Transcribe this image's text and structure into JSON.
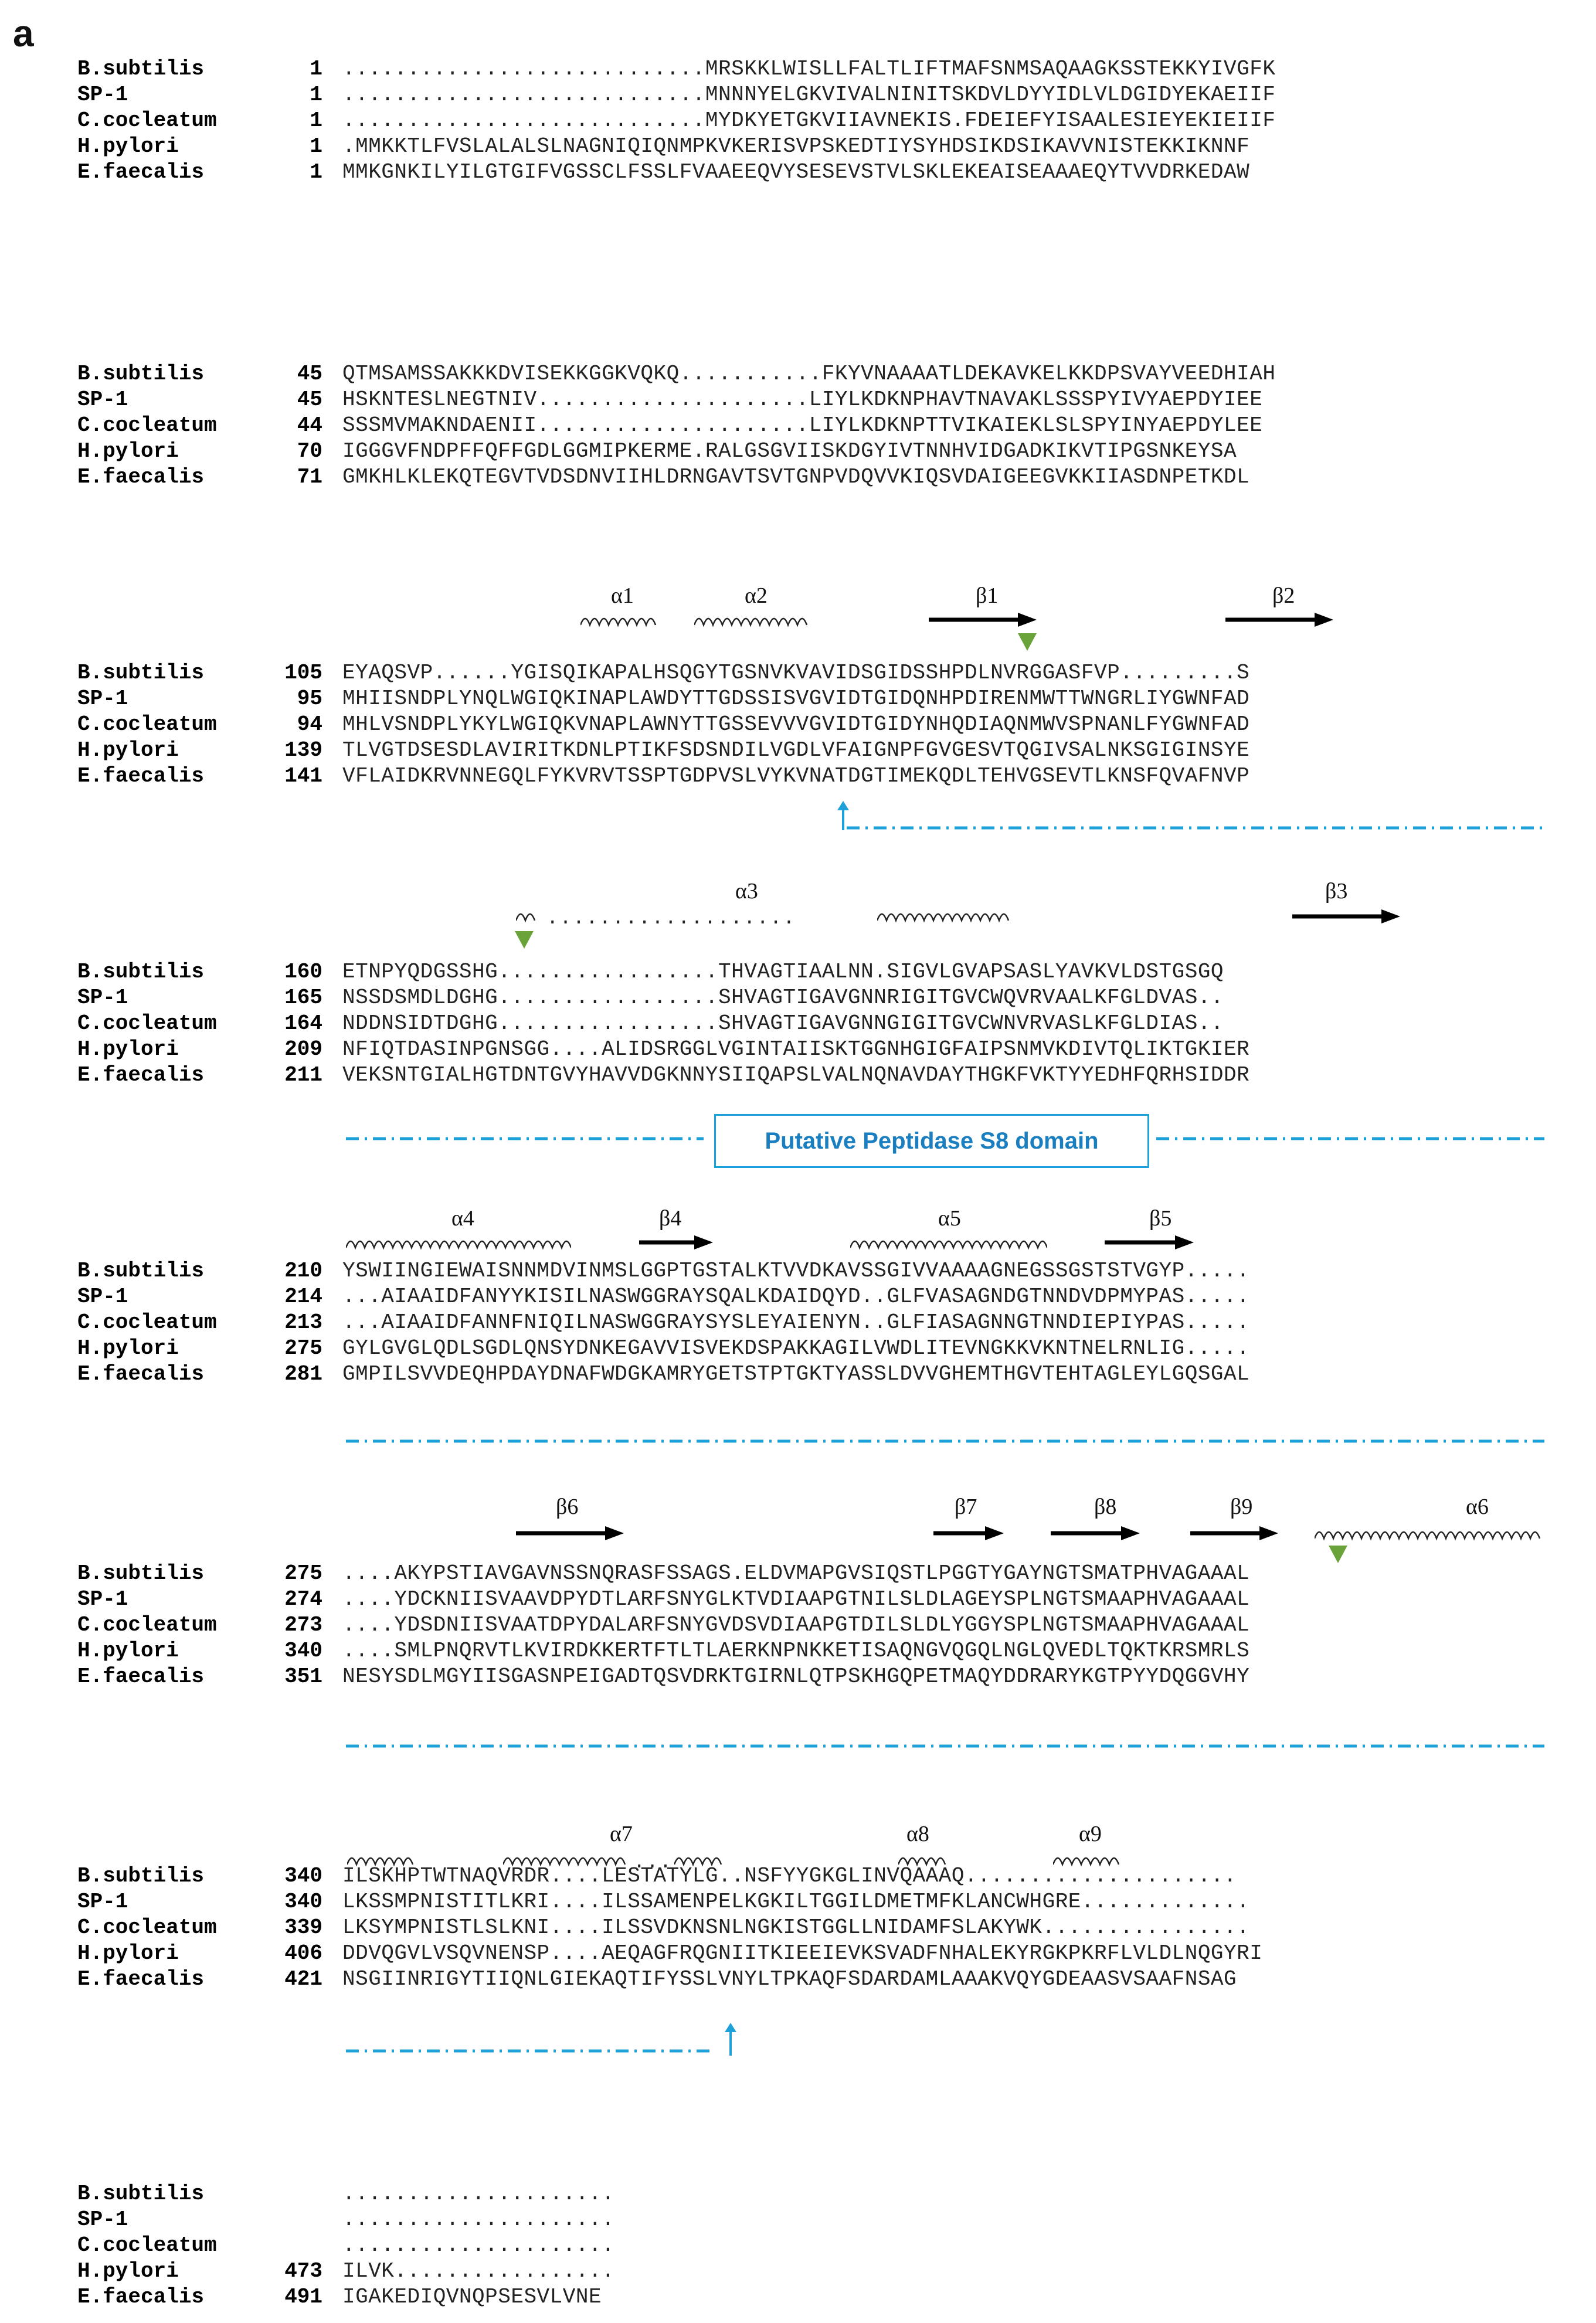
{
  "panel_label": "a",
  "species": [
    "B.subtilis",
    "SP-1",
    "C.cocleatum",
    "H.pylori",
    "E.faecalis"
  ],
  "blocks": [
    {
      "nums": [
        "1",
        "1",
        "1",
        "1",
        "1"
      ],
      "seqs": [
        "............................MRSKKLWISLLFALTLIFTMAFSNMSAQAAGKSSTEKKYIVGFK",
        "............................MNNNYELGKVIVALNINITSKDVLDYYIDLVLDGIDYEKAEIIF",
        "............................MYDKYETGKVIIAVNEKIS.FDEIEFYISAALESIEYEKIEIIF",
        ".MMKKTLFVSLALALSLNAGNIQIQNMPKVKERISVPSKEDTIYSYHDSIKDSIKAVVNISTEKKIKNNF",
        "MMKGNKILYILGTGIFVGSSCLFSSLFVAAEEQVYSESEVSTVLSKLEKEAISEAAAEQYTVVDRKEDAW"
      ]
    },
    {
      "nums": [
        "45",
        "45",
        "44",
        "70",
        "71"
      ],
      "seqs": [
        "QTMSAMSSAKKKDVISEKKGGKVQKQ...........FKYVNAAAATLDEKAVKELKKDPSVAYVEEDHIAH",
        "HSKNTESLNEGTNIV.....................LIYLKDKNPHAVTNAVAKLSSSPYIVYAEPDYIEE",
        "SSSMVMAKNDAENII.....................LIYLKDKNPTTVIKAIEKLSLSPYINYAEPDYLEE",
        "IGGGVFNDPFFQFFGDLGGMIPKERME.RALGSGVIISKDGYIVTNNHVIDGADKIKVTIPGSNKEYSA",
        "GMKHLKLEKQTEGVTVDSDNVIIHLDRNGAVTSVTGNPVDQVVKIQSVDAIGEEGVKKIIASDNPETKDL"
      ]
    },
    {
      "nums": [
        "105",
        "95",
        "94",
        "139",
        "141"
      ],
      "seqs": [
        "EYAQSVP......YGISQIKAPALHSQGYTGSNVKVAVIDSGIDSSHPDLNVRGGASFVP.........S",
        "MHIISNDPLYNQLWGIQKINAPLAWDYTTGDSSISVGVIDTGIDQNHPDIRENMWTTWNGRLIYGWNFAD",
        "MHLVSNDPLYKYLWGIQKVNAPLAWNYTTGSSEVVVGVIDTGIDYNHQDIAQNMWVSPNANLFYGWNFAD",
        "TLVGTDSESDLAVIRITKDNLPTIKFSDSNDILVGDLVFAIGNPFGVGESVTQGIVSALNKSGIGINSYE",
        "VFLAIDKRVNNEGQLFYKVRVTSSPTGDPVSLVYKVNATDGTIMEKQDLTEHVGSEVTLKNSFQVAFNVP"
      ]
    },
    {
      "nums": [
        "160",
        "165",
        "164",
        "209",
        "211"
      ],
      "seqs": [
        "ETNPYQDGSSHG.................THVAGTIAALNN.SIGVLGVAPSASLYAVKVLDSTGSGQ",
        "NSSDSMDLDGHG.................SHVAGTIGAVGNNRIGITGVCWQVRVAALKFGLDVAS..",
        "NDDNSIDTDGHG.................SHVAGTIGAVGNNGIGITGVCWNVRVASLKFGLDIAS..",
        "NFIQTDASINPGNSGG....ALIDSRGGLVGINTAIISKTGGNHGIGFAIPSNMVKDIVTQLIKTGKIER",
        "VEKSNTGIALHGTDNTGVYHAVVDGKNNYSIIQAPSLVALNQNAVDAYTHGKFVKTYYEDHFQRHSIDDR"
      ]
    },
    {
      "nums": [
        "210",
        "214",
        "213",
        "275",
        "281"
      ],
      "seqs": [
        "YSWIINGIEWAISNNMDVINMSLGGPTGSTALKTVVDKAVSSGIVVAAAAGNEGSSGSTSTVGYP.....",
        "...AIAAIDFANYYKISILNASWGGRAYSQALKDAIDQYD..GLFVASAGNDGTNNDVDPMYPAS.....",
        "...AIAAIDFANNFNIQILNASWGGRAYSYSLEYAIENYN..GLFIASAGNNGTNNDIEPIYPAS.....",
        "GYLGVGLQDLSGDLQNSYDNKEGAVVISVEKDSPAKKAGILVWDLITEVNGKKVKNTNELRNLIG.....",
        "GMPILSVVDEQHPDAYDNAFWDGKAMRYGETSTPTGKTYASSLDVVGHEMTHGVTEHTAGLEYLGQSGAL"
      ]
    },
    {
      "nums": [
        "275",
        "274",
        "273",
        "340",
        "351"
      ],
      "seqs": [
        "....AKYPSTIAVGAVNSSNQRASFSSAGS.ELDVMAPGVSIQSTLPGGTYGAYNGTSMATPHVAGAAAL",
        "....YDCKNIISVAAVDPYDTLARFSNYGLKTVDIAAPGTNILSLDLAGEYSPLNGTSMAAPHVAGAAAL",
        "....YDSDNIISVAATDPYDALARFSNYGVDSVDIAAPGTDILSLDLYGGYSPLNGTSMAAPHVAGAAAL",
        "....SMLPNQRVTLKVIRDKKERTFTLTLAERKNPNKKETISAQNGVQGQLNGLQVEDLTQKTKRSMRLS",
        "NESYSDLMGYIISGASNPEIGADTQSVDRKTGIRNLQTPSKHGQPETMAQYDDRARYKGTPYYDQGGVHY"
      ]
    },
    {
      "nums": [
        "340",
        "340",
        "339",
        "406",
        "421"
      ],
      "seqs": [
        "ILSKHPTWTNAQVRDR....LESTATYLG..NSFYYGKGLINVQAAAQ.....................",
        "LKSSMPNISTITLKRI....ILSSAMENPELKGKILTGGILDMETMFKLANCWHGRE.............",
        "LKSYMPNISTLSLKNI....ILSSVDKNSNLNGKISTGGLLNIDAMFSLAKYWK................",
        "DDVQGVLVSQVNENSP....AEQAGFRQGNIITKIEEIEVKSVADFNHALEKYRGKPKRFLVLDLNQGYRI",
        "NSGIINRIGYTIIQNLGIEKAQTIFYSSLVNYLTPKAQFSDARDAMLAAAKVQYGDEAASVSAAFNSAG"
      ]
    },
    {
      "nums": [
        "",
        "",
        "",
        "473",
        "491"
      ],
      "seqs": [
        ".....................",
        ".....................",
        ".....................",
        "ILVK.................",
        "IGAKEDIQVNQPSESVLVNE"
      ]
    }
  ],
  "ss_labels": {
    "a1": "α1",
    "a2": "α2",
    "b1": "β1",
    "b2": "β2",
    "a3": "α3",
    "b3": "β3",
    "a4": "α4",
    "b4": "β4",
    "a5": "α5",
    "b5": "β5",
    "b6": "β6",
    "b7": "β7",
    "b8": "β8",
    "b9": "β9",
    "a6": "α6",
    "a7": "α7",
    "a8": "α8",
    "a9": "α9"
  },
  "domain_label": "Putative Peptidase S8 domain",
  "colors": {
    "conserved": "#e0142c",
    "box": "#7b7bd8",
    "helix": "#222222",
    "arrow": "#000000",
    "dash": "#1da1d8",
    "triangle": "#6aa33a"
  }
}
